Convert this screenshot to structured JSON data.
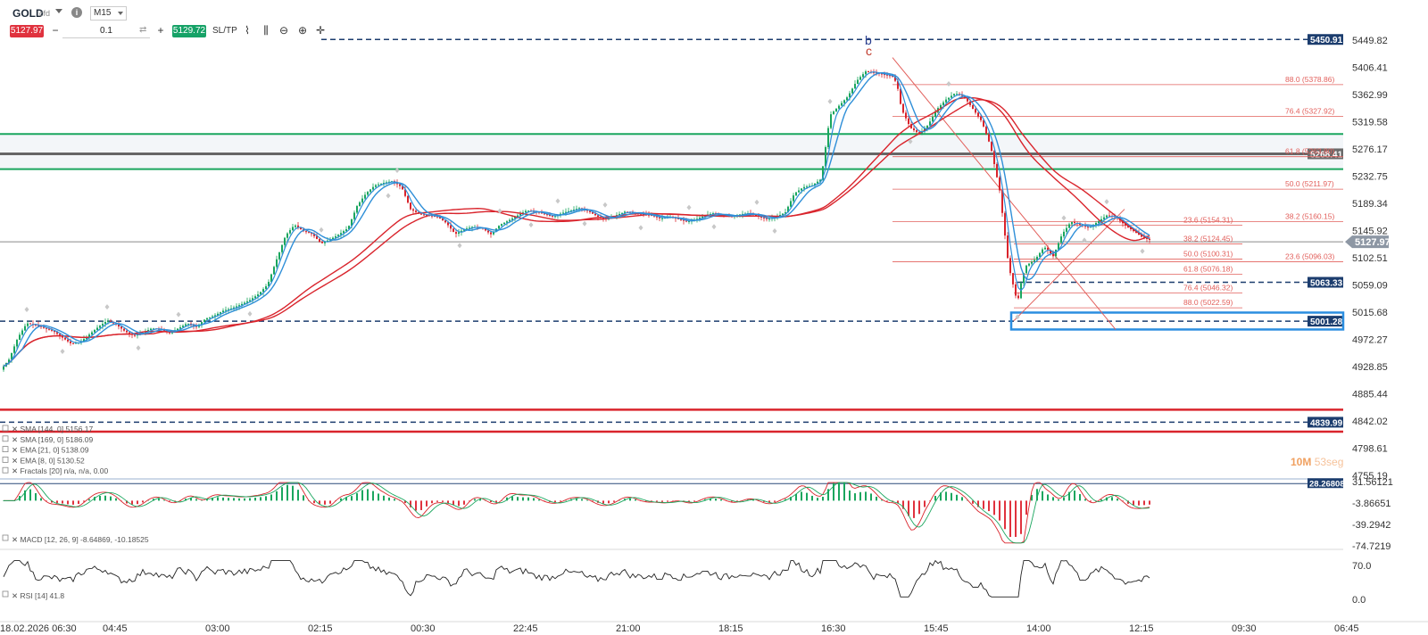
{
  "toolbar": {
    "symbol": "GOLD",
    "symbol_type": "cfd",
    "info_icon": "info-icon",
    "timeframe": "M15",
    "sell_price": "5127.97",
    "volume": "0.1",
    "buy_price": "5129.72",
    "sltp_label": "SL/TP",
    "tools": [
      "line-chart-icon",
      "candle-chart-icon",
      "zoom-out-icon",
      "zoom-in-icon",
      "crosshair-icon"
    ]
  },
  "timer": {
    "minutes": "10M",
    "seconds": "53seg"
  },
  "colors": {
    "sma_red": "#d9242c",
    "ema_blue": "#2f8fd8",
    "green_line": "#1aa65e",
    "grey_band": "#666666",
    "dark_label": "#1c3d6e",
    "fib": "#e2605c",
    "macd_up": "#1aa65e",
    "macd_down": "#e0323e"
  },
  "chart_data": {
    "type": "candlestick",
    "symbol": "GOLD",
    "timeframe": "M15",
    "y_axis_labels": [
      "5449.82",
      "5406.41",
      "5362.99",
      "5319.58",
      "5276.17",
      "5232.75",
      "5189.34",
      "5145.92",
      "5102.51",
      "5059.09",
      "5015.68",
      "4972.27",
      "4928.85",
      "4885.44",
      "4842.02",
      "4798.61",
      "4755.19"
    ],
    "ylim": [
      4755.19,
      5449.82
    ],
    "x_axis_labels": [
      "18.02.2026 06:30",
      "04:45",
      "03:00",
      "02:15",
      "00:30",
      "22:45",
      "21:00",
      "18:15",
      "16:30",
      "15:45",
      "14:00",
      "12:15",
      "09:30",
      "06:45"
    ],
    "current_price": "5127.97",
    "price_levels": [
      {
        "label": "5450.91",
        "value": 5450.91,
        "style": "dashed"
      },
      {
        "label": "5268.41",
        "value": 5268.41,
        "style": "solid"
      },
      {
        "label": "5063.33",
        "value": 5063.33,
        "style": "dashed"
      },
      {
        "label": "5001.28",
        "value": 5001.28,
        "style": "dashed"
      },
      {
        "label": "4839.99",
        "value": 4839.99,
        "style": "dashed"
      }
    ],
    "fib_upper": [
      {
        "label": "88.0 (5378.86)",
        "value": 5378.86
      },
      {
        "label": "76.4 (5327.92)",
        "value": 5327.92
      },
      {
        "label": "61.8 (5263.80)",
        "value": 5263.8
      },
      {
        "label": "50.0 (5211.97)",
        "value": 5211.97
      },
      {
        "label": "38.2 (5160.15)",
        "value": 5160.15
      },
      {
        "label": "23.6 (5096.03)",
        "value": 5096.03
      }
    ],
    "fib_lower": [
      {
        "label": "23.6 (5154.31)",
        "value": 5154.31
      },
      {
        "label": "38.2 (5124.45)",
        "value": 5124.45
      },
      {
        "label": "50.0 (5100.31)",
        "value": 5100.31
      },
      {
        "label": "61.8 (5076.18)",
        "value": 5076.18
      },
      {
        "label": "76.4 (5046.32)",
        "value": 5046.32
      },
      {
        "label": "88.0 (5022.59)",
        "value": 5022.59
      }
    ],
    "wave_labels": [
      "b",
      "c"
    ],
    "indicators": [
      "SMA [144, 0] 5156.17",
      "SMA [169, 0] 5186.09",
      "EMA [21, 0] 5138.09",
      "EMA [8, 0] 5130.52",
      "Fractals [20] n/a, n/a, 0.00"
    ],
    "macd": {
      "label": "MACD [12, 26, 9] -8.64869, -10.18525",
      "axis_labels": [
        "31.56121",
        "-3.86651",
        "-39.2942",
        "-74.7219"
      ],
      "level_label": "28.26808"
    },
    "rsi": {
      "label": "RSI [14] 41.8",
      "axis_labels": [
        "70.0",
        "0.0"
      ]
    },
    "price_path": [
      [
        0,
        4922
      ],
      [
        10,
        4940
      ],
      [
        20,
        4975
      ],
      [
        30,
        4998
      ],
      [
        40,
        4995
      ],
      [
        50,
        4990
      ],
      [
        60,
        4985
      ],
      [
        70,
        4975
      ],
      [
        80,
        4965
      ],
      [
        90,
        4968
      ],
      [
        100,
        4980
      ],
      [
        110,
        4992
      ],
      [
        120,
        5002
      ],
      [
        130,
        4996
      ],
      [
        140,
        4985
      ],
      [
        150,
        4978
      ],
      [
        160,
        4983
      ],
      [
        170,
        4990
      ],
      [
        180,
        4988
      ],
      [
        190,
        4982
      ],
      [
        200,
        4990
      ],
      [
        210,
        4998
      ],
      [
        220,
        4992
      ],
      [
        230,
        5005
      ],
      [
        240,
        5010
      ],
      [
        250,
        5018
      ],
      [
        260,
        5022
      ],
      [
        270,
        5028
      ],
      [
        280,
        5035
      ],
      [
        290,
        5045
      ],
      [
        300,
        5060
      ],
      [
        310,
        5100
      ],
      [
        320,
        5138
      ],
      [
        330,
        5155
      ],
      [
        340,
        5145
      ],
      [
        350,
        5140
      ],
      [
        360,
        5125
      ],
      [
        370,
        5132
      ],
      [
        380,
        5140
      ],
      [
        390,
        5150
      ],
      [
        400,
        5185
      ],
      [
        410,
        5205
      ],
      [
        420,
        5218
      ],
      [
        430,
        5222
      ],
      [
        440,
        5225
      ],
      [
        450,
        5215
      ],
      [
        460,
        5180
      ],
      [
        470,
        5172
      ],
      [
        480,
        5170
      ],
      [
        490,
        5168
      ],
      [
        500,
        5158
      ],
      [
        510,
        5140
      ],
      [
        520,
        5148
      ],
      [
        530,
        5152
      ],
      [
        540,
        5150
      ],
      [
        550,
        5140
      ],
      [
        560,
        5155
      ],
      [
        570,
        5162
      ],
      [
        580,
        5170
      ],
      [
        590,
        5178
      ],
      [
        600,
        5176
      ],
      [
        610,
        5172
      ],
      [
        620,
        5168
      ],
      [
        630,
        5174
      ],
      [
        640,
        5178
      ],
      [
        650,
        5182
      ],
      [
        660,
        5176
      ],
      [
        670,
        5168
      ],
      [
        680,
        5164
      ],
      [
        690,
        5170
      ],
      [
        700,
        5176
      ],
      [
        710,
        5174
      ],
      [
        720,
        5172
      ],
      [
        730,
        5170
      ],
      [
        740,
        5165
      ],
      [
        750,
        5168
      ],
      [
        760,
        5164
      ],
      [
        770,
        5160
      ],
      [
        780,
        5164
      ],
      [
        790,
        5170
      ],
      [
        800,
        5174
      ],
      [
        810,
        5170
      ],
      [
        820,
        5168
      ],
      [
        830,
        5172
      ],
      [
        840,
        5174
      ],
      [
        850,
        5168
      ],
      [
        860,
        5164
      ],
      [
        870,
        5168
      ],
      [
        880,
        5175
      ],
      [
        890,
        5205
      ],
      [
        900,
        5215
      ],
      [
        910,
        5218
      ],
      [
        920,
        5228
      ],
      [
        930,
        5330
      ],
      [
        940,
        5345
      ],
      [
        950,
        5360
      ],
      [
        960,
        5385
      ],
      [
        970,
        5400
      ],
      [
        980,
        5398
      ],
      [
        990,
        5395
      ],
      [
        1000,
        5392
      ],
      [
        1005,
        5380
      ],
      [
        1010,
        5340
      ],
      [
        1020,
        5310
      ],
      [
        1030,
        5300
      ],
      [
        1040,
        5315
      ],
      [
        1050,
        5340
      ],
      [
        1060,
        5355
      ],
      [
        1070,
        5365
      ],
      [
        1080,
        5360
      ],
      [
        1090,
        5340
      ],
      [
        1100,
        5320
      ],
      [
        1110,
        5280
      ],
      [
        1120,
        5210
      ],
      [
        1125,
        5150
      ],
      [
        1130,
        5090
      ],
      [
        1135,
        5060
      ],
      [
        1140,
        5030
      ],
      [
        1145,
        5070
      ],
      [
        1150,
        5090
      ],
      [
        1160,
        5100
      ],
      [
        1170,
        5120
      ],
      [
        1180,
        5105
      ],
      [
        1190,
        5140
      ],
      [
        1200,
        5160
      ],
      [
        1210,
        5155
      ],
      [
        1220,
        5150
      ],
      [
        1230,
        5160
      ],
      [
        1240,
        5170
      ],
      [
        1250,
        5168
      ],
      [
        1260,
        5155
      ],
      [
        1270,
        5145
      ],
      [
        1280,
        5135
      ],
      [
        1290,
        5130
      ]
    ]
  }
}
